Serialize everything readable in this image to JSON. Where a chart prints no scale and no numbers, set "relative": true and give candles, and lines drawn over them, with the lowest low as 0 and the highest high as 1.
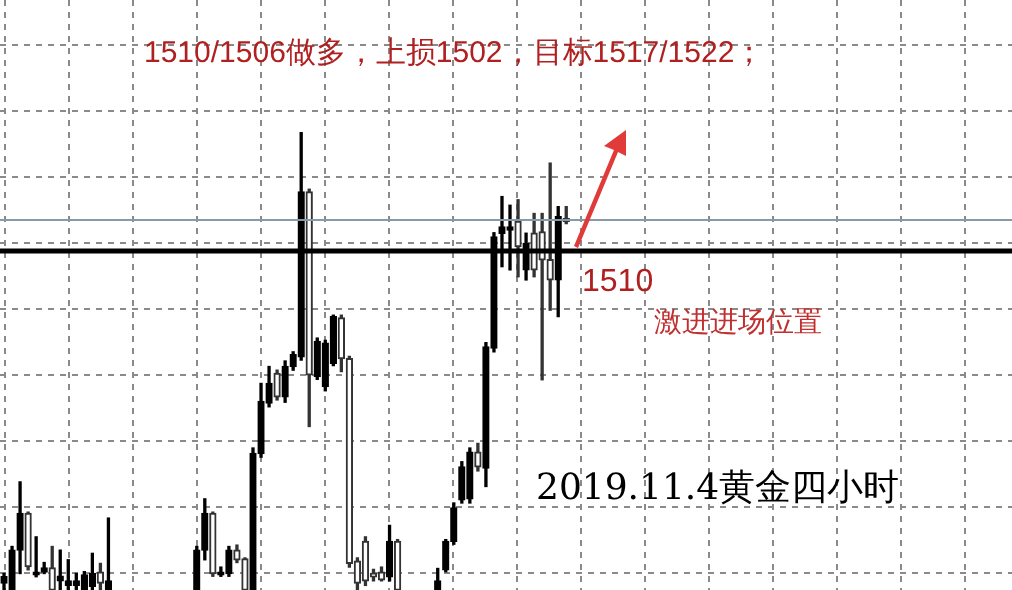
{
  "chart_data": {
    "type": "candlestick",
    "title": "1510/1506做多，上损1502，目标1517/1522；",
    "relative": true,
    "grid": true,
    "annotations": [
      "1510",
      "激进进场位置",
      "2019.11.4黄金四小时"
    ],
    "ref_lines": [
      {
        "axis": "y",
        "value": 0.74,
        "color": "#000000"
      },
      {
        "axis": "y",
        "value": 0.808,
        "color": "#8899aa"
      }
    ],
    "categories": [
      null,
      null,
      null,
      null,
      null,
      null,
      null,
      null,
      null,
      null,
      null,
      null,
      null,
      null,
      null,
      null,
      null,
      null,
      null,
      null,
      null,
      null,
      null,
      null,
      null,
      null,
      null,
      null,
      null,
      null,
      null,
      null,
      null,
      null,
      null,
      null,
      null,
      null,
      null,
      null,
      null,
      null,
      null,
      null,
      null,
      null,
      null,
      null,
      null,
      null,
      null,
      null,
      null,
      null,
      null,
      null,
      null,
      null,
      null,
      null,
      null,
      null,
      null,
      null,
      null,
      null,
      null,
      null,
      null,
      null,
      null,
      null,
      null,
      null,
      null,
      null,
      null,
      null,
      null,
      null,
      null,
      null,
      null,
      null,
      null,
      null,
      null,
      null,
      null,
      null,
      null,
      null,
      null,
      null,
      null,
      null,
      null,
      null,
      null,
      null,
      null,
      null,
      null,
      null,
      null,
      null,
      null,
      null,
      null,
      null,
      null,
      null,
      null,
      null,
      null,
      null,
      null,
      null,
      null,
      null,
      null,
      null,
      null,
      null,
      null,
      null
    ],
    "ohlc": [
      [
        0.015,
        0.036,
        0,
        0.029
      ],
      [
        0,
        0.095,
        0,
        0.087
      ],
      [
        0.087,
        0.236,
        0.036,
        0.167
      ],
      [
        0.167,
        0.17,
        0.044,
        0.051
      ],
      [
        0.033,
        0.116,
        0.029,
        0.039
      ],
      [
        0.039,
        0.06,
        0.036,
        0.048
      ],
      [
        0.048,
        0.095,
        0,
        0
      ],
      [
        0.02,
        0.087,
        0,
        0.03
      ],
      [
        0.01,
        0.066,
        0,
        0.02
      ],
      [
        0.01,
        0.036,
        0,
        0.02
      ],
      [
        0,
        0.04,
        0,
        0.033
      ],
      [
        0.008,
        0.08,
        0,
        0.036
      ],
      [
        0.039,
        0.058,
        0,
        0.015
      ],
      [
        0,
        0.157,
        0,
        0.02
      ],
      null,
      null,
      null,
      null,
      null,
      null,
      null,
      null,
      null,
      null,
      [
        0,
        0.095,
        0,
        0.087
      ],
      [
        0.087,
        0.199,
        0.066,
        0.167
      ],
      [
        0.167,
        0.17,
        0.03,
        0.036
      ],
      [
        0.033,
        0.05,
        0.03,
        0.039
      ],
      [
        0.036,
        0.095,
        0.03,
        0.087
      ],
      [
        0.087,
        0.098,
        0.06,
        0.066
      ],
      [
        0.068,
        0.07,
        0,
        0
      ],
      [
        0,
        0.31,
        0,
        0.298
      ],
      [
        0.298,
        0.451,
        0.29,
        0.412
      ],
      [
        0.408,
        0.488,
        0.4,
        0.451
      ],
      [
        0.473,
        0.48,
        0.415,
        0.422
      ],
      [
        0.422,
        0.5,
        0.41,
        0.488
      ],
      [
        0.488,
        0.52,
        0.48,
        0.514
      ],
      [
        0.509,
        1,
        0.502,
        0.869
      ],
      [
        0.869,
        0.875,
        0.357,
        0.47
      ],
      [
        0.466,
        0.55,
        0.46,
        0.543
      ],
      [
        0.444,
        0.545,
        0.435,
        0.539
      ],
      [
        0.495,
        0.6,
        0.49,
        0.597
      ],
      [
        0.594,
        0.6,
        0.477,
        0.505
      ],
      [
        0.505,
        0.51,
        0.05,
        0.058
      ],
      [
        0.063,
        0.07,
        0,
        0.015
      ],
      [
        0.106,
        0.116,
        0.01,
        0.02
      ],
      [
        0.036,
        0.045,
        0.02,
        0.029
      ],
      [
        0.039,
        0.05,
        0.02,
        0.022
      ],
      [
        0.029,
        0.141,
        0.02,
        0.106
      ],
      [
        0.106,
        0.11,
        0,
        0
      ],
      null,
      null,
      null,
      null,
      [
        0,
        0.047,
        0,
        0.02
      ],
      [
        0.044,
        0.11,
        0.04,
        0.106
      ],
      [
        0.106,
        0.19,
        0.1,
        0.179
      ],
      [
        0.197,
        0.28,
        0.19,
        0.269
      ],
      [
        0.199,
        0.31,
        0.19,
        0.301
      ],
      [
        0.301,
        0.32,
        0.26,
        0.269
      ],
      [
        0.266,
        0.54,
        0.226,
        0.531
      ],
      [
        0.528,
        0.78,
        0.52,
        0.771
      ],
      [
        0.779,
        0.859,
        0.706,
        0.793
      ],
      [
        0.786,
        0.84,
        0.699,
        0.793
      ],
      [
        0.805,
        0.852,
        0.684,
        0.75
      ],
      [
        0.699,
        0.779,
        0.677,
        0.757
      ],
      [
        0.779,
        0.822,
        0.684,
        0.699
      ],
      [
        0.782,
        0.822,
        0.459,
        0.721
      ],
      [
        0.721,
        0.932,
        0.611,
        0.677
      ],
      [
        0.677,
        0.837,
        0.597,
        0.815
      ],
      [
        0.811,
        0.837,
        0.8,
        0.805
      ],
      null,
      null,
      null,
      null,
      null,
      null,
      null,
      null,
      null,
      null,
      null,
      null,
      null,
      null,
      null,
      null,
      null,
      null,
      null,
      null,
      null,
      null,
      null,
      null,
      null,
      null,
      null,
      null,
      null,
      null,
      null,
      null,
      null,
      null,
      null,
      null,
      null,
      null,
      null,
      null,
      null,
      null,
      null,
      null,
      null,
      null,
      null,
      null,
      null,
      null,
      null,
      null,
      null,
      null,
      null
    ]
  }
}
